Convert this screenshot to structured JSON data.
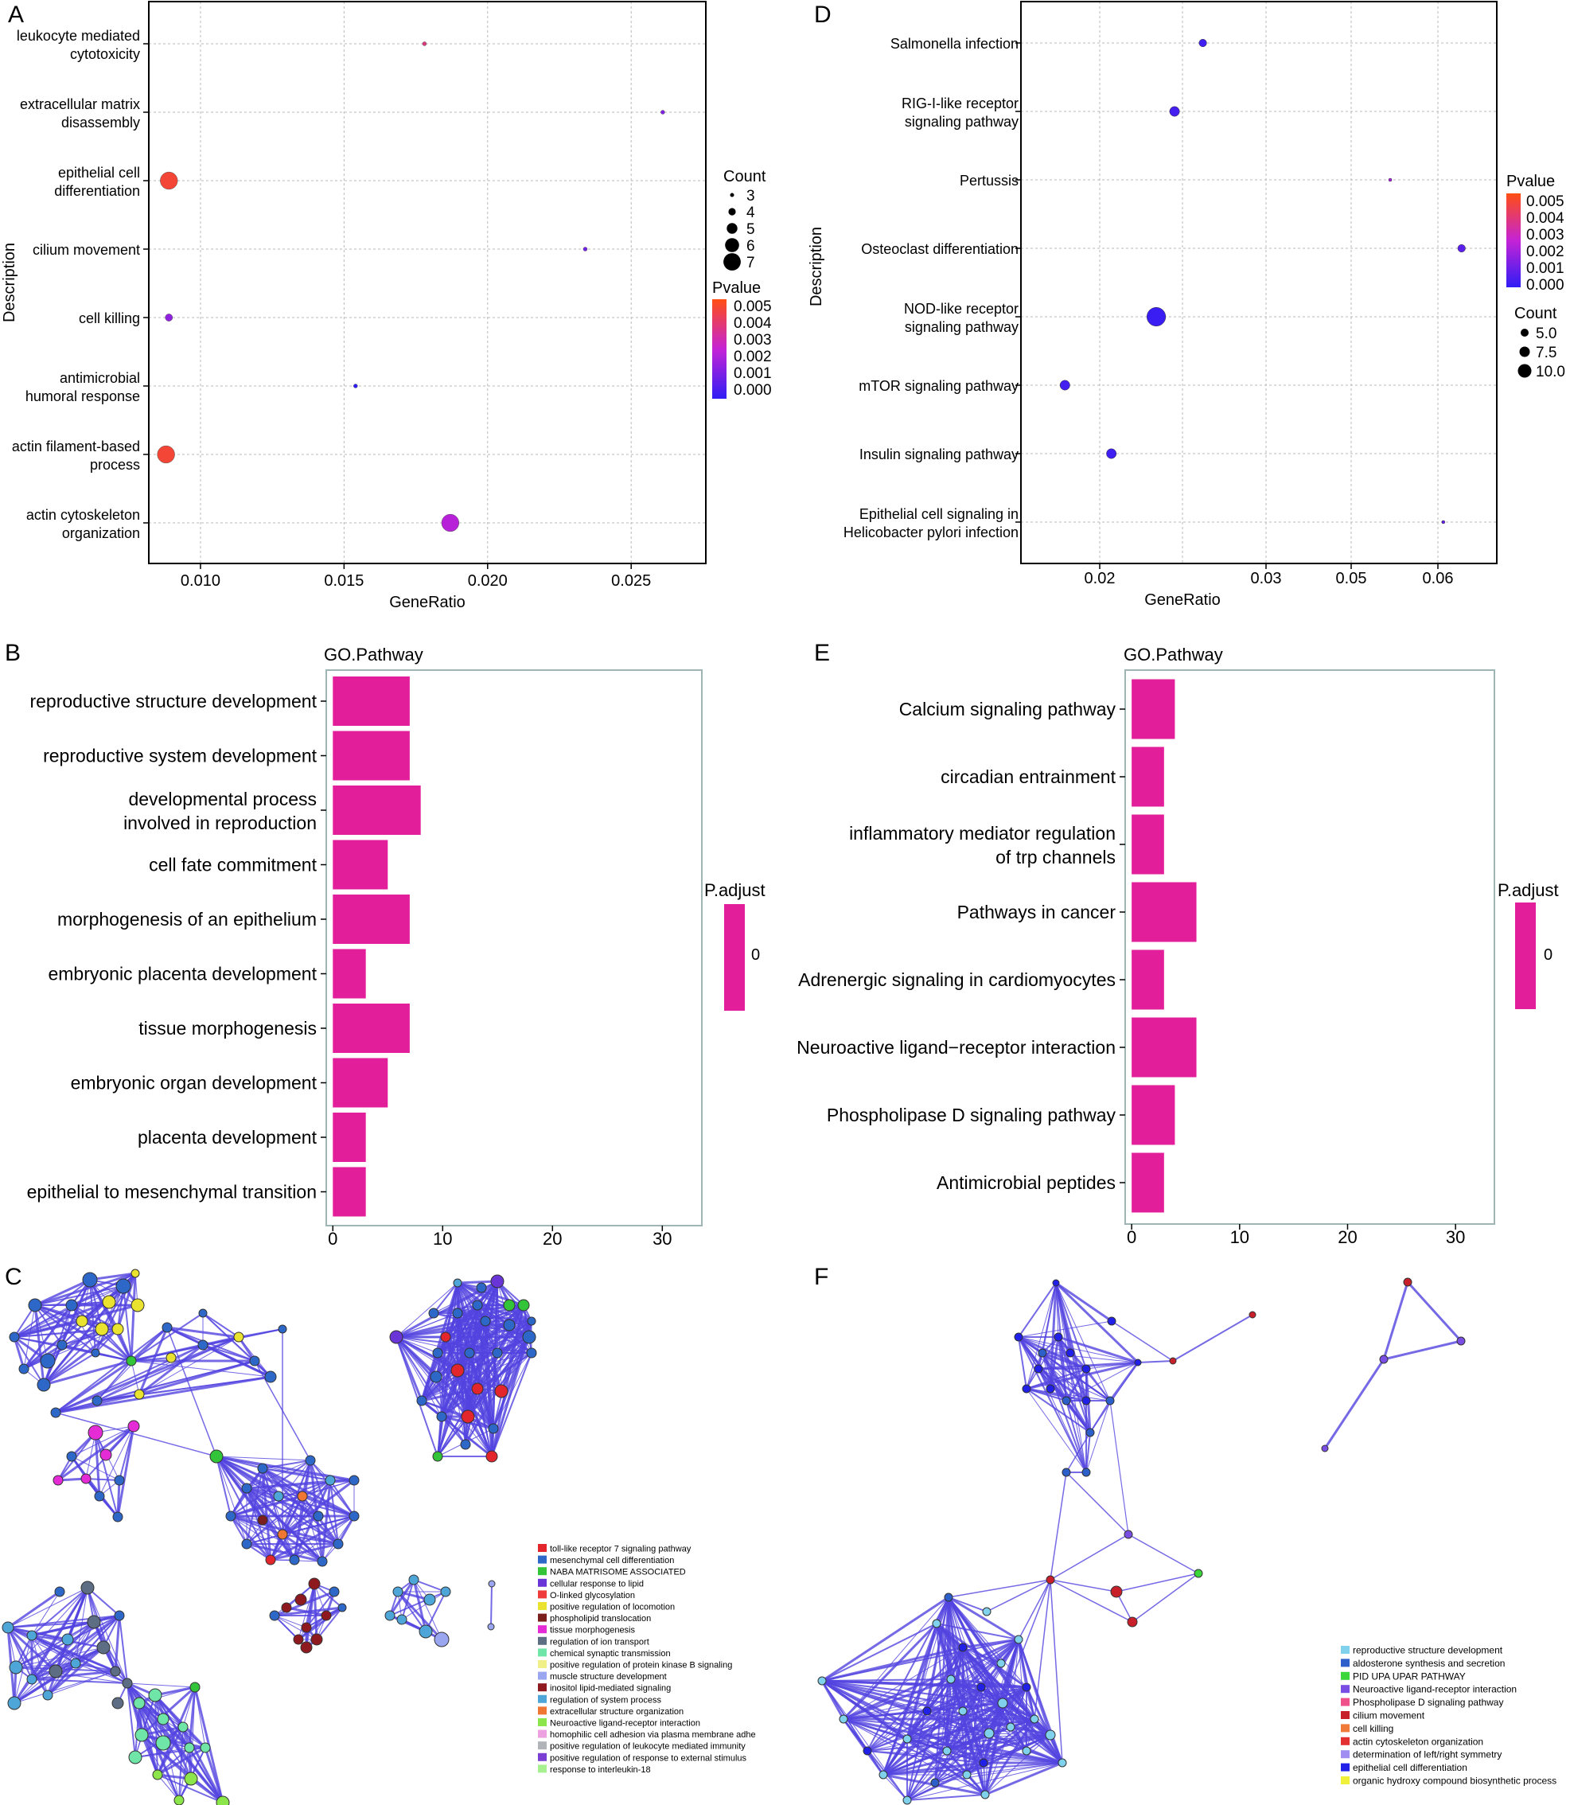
{
  "colors": {
    "frame": "#000000",
    "grid": "#b9b9b9",
    "bar": "#e31e9a",
    "go_frame": "#9fb4b4",
    "p_low": "#2f1df5",
    "p_mid": "#c523d6",
    "p_high": "#ff4e12",
    "edge": "#5344e0"
  },
  "panels": {
    "A": {
      "letter": "A",
      "title": "",
      "xlabel": "GeneRatio",
      "ylabel": "Description",
      "x_ticks": [
        "0.010",
        "0.015",
        "0.020",
        "0.025"
      ],
      "categories": [
        "leukocyte mediated cytotoxicity",
        "extracellular matrix disassembly",
        "epithelial cell differentiation",
        "cilium movement",
        "cell killing",
        "antimicrobial humoral response",
        "actin filament-based process",
        "actin cytoskeleton organization"
      ],
      "category_lines": [
        [
          "leukocyte mediated",
          "cytotoxicity"
        ],
        [
          "extracellular matrix",
          "disassembly"
        ],
        [
          "epithelial cell",
          "differentiation"
        ],
        [
          "cilium movement"
        ],
        [
          "cell killing"
        ],
        [
          "antimicrobial",
          "humoral response"
        ],
        [
          "actin filament-based",
          "process"
        ],
        [
          "actin cytoskeleton",
          "organization"
        ]
      ],
      "legend_count_title": "Count",
      "legend_count_labels": [
        "3",
        "4",
        "5",
        "6",
        "7"
      ],
      "legend_p_title": "Pvalue",
      "legend_p_labels": [
        "0.005",
        "0.004",
        "0.003",
        "0.002",
        "0.001",
        "0.000"
      ]
    },
    "B": {
      "letter": "B",
      "title": "GO.Pathway",
      "x_ticks": [
        "0",
        "10",
        "20",
        "30"
      ],
      "legend_title": "P.adjust",
      "legend_label": "0",
      "category_lines": [
        [
          "reproductive structure development"
        ],
        [
          "reproductive system development"
        ],
        [
          "developmental process",
          "involved in reproduction"
        ],
        [
          "cell fate commitment"
        ],
        [
          "morphogenesis of an epithelium"
        ],
        [
          "embryonic placenta development"
        ],
        [
          "tissue morphogenesis"
        ],
        [
          "embryonic organ development"
        ],
        [
          "placenta development"
        ],
        [
          "epithelial to mesenchymal transition"
        ]
      ]
    },
    "C": {
      "letter": "C",
      "legend": [
        "toll-like receptor 7 signaling pathway",
        "mesenchymal cell differentiation",
        "NABA MATRISOME ASSOCIATED",
        "cellular response to lipid",
        "O-linked glycosylation",
        "positive regulation of locomotion",
        "phospholipid translocation",
        "tissue morphogenesis",
        "regulation of ion transport",
        "chemical synaptic transmission",
        "positive regulation of protein kinase B signaling",
        "muscle structure development",
        "inositol lipid-mediated signaling",
        "regulation of system process",
        "extracellular structure organization",
        "Neuroactive ligand-receptor interaction",
        "homophilic cell adhesion via plasma membrane adhe",
        "positive regulation of leukocyte mediated immunity",
        "positive regulation of response to external stimulus",
        "response to interleukin-18"
      ],
      "legend_colors": [
        "#e3262b",
        "#2d67c8",
        "#33c43a",
        "#6a35d6",
        "#ef3b3b",
        "#e9e22f",
        "#7a1f1c",
        "#e52bd6",
        "#5d6e84",
        "#6fe6a8",
        "#f0ef88",
        "#9aa6f0",
        "#8e1a20",
        "#4ea6d8",
        "#ef7733",
        "#8ce54a",
        "#eda1e0",
        "#b0b4b8",
        "#7b3fd4",
        "#a6f08f"
      ]
    },
    "D": {
      "letter": "D",
      "xlabel": "GeneRatio",
      "ylabel": "Description",
      "x_ticks": [
        "0.02",
        "0.03",
        "0.05",
        "0.06"
      ],
      "categories": [
        "Salmonella infection",
        "RIG-I-like receptor signaling pathway",
        "Pertussis",
        "Osteoclast differentiation",
        "NOD-like receptor signaling pathway",
        "mTOR signaling pathway",
        "Insulin signaling pathway",
        "Epithelial cell signaling in Helicobacter pylori infection"
      ],
      "category_lines": [
        [
          "Salmonella infection"
        ],
        [
          "RIG-I-like receptor",
          "signaling pathway"
        ],
        [
          "Pertussis"
        ],
        [
          "Osteoclast differentiation"
        ],
        [
          "NOD-like receptor",
          "signaling pathway"
        ],
        [
          "mTOR signaling pathway"
        ],
        [
          "Insulin signaling pathway"
        ],
        [
          "Epithelial cell signaling in",
          "Helicobacter pylori infection"
        ]
      ],
      "legend_p_title": "Pvalue",
      "legend_p_labels": [
        "0.005",
        "0.004",
        "0.003",
        "0.002",
        "0.001",
        "0.000"
      ],
      "legend_count_title": "Count",
      "legend_count_labels": [
        "5.0",
        "7.5",
        "10.0"
      ]
    },
    "E": {
      "letter": "E",
      "title": "GO.Pathway",
      "x_ticks": [
        "0",
        "10",
        "20",
        "30"
      ],
      "legend_title": "P.adjust",
      "legend_label": "0",
      "category_lines": [
        [
          "Calcium signaling pathway"
        ],
        [
          "circadian entrainment"
        ],
        [
          "inflammatory mediator regulation",
          "of trp channels"
        ],
        [
          "Pathways in cancer"
        ],
        [
          "Adrenergic signaling in cardiomyocytes"
        ],
        [
          "Neuroactive ligand−receptor interaction"
        ],
        [
          "Phospholipase D signaling pathway"
        ],
        [
          "Antimicrobial peptides"
        ]
      ]
    },
    "F": {
      "letter": "F",
      "legend": [
        "reproductive structure development",
        "aldosterone synthesis and secretion",
        "PID UPA UPAR PATHWAY",
        "Neuroactive ligand-receptor interaction",
        "Phospholipase D signaling pathway",
        "cilium movement",
        "cell killing",
        "actin cytoskeleton organization",
        "determination of left/right symmetry",
        "epithelial cell differentiation",
        "organic hydroxy compound biosynthetic process"
      ],
      "legend_colors": [
        "#7fd1ec",
        "#2c5fc9",
        "#3ad63a",
        "#7b4ee3",
        "#f0508a",
        "#c8202a",
        "#f07a3a",
        "#e33030",
        "#a08ff0",
        "#2020e8",
        "#f0f03a"
      ]
    }
  },
  "chart_data": [
    {
      "panel": "A",
      "type": "scatter",
      "title": "",
      "xlabel": "GeneRatio",
      "ylabel": "Description",
      "xlim": [
        0.0082,
        0.0276
      ],
      "categories": [
        "leukocyte mediated cytotoxicity",
        "extracellular matrix disassembly",
        "epithelial cell differentiation",
        "cilium movement",
        "cell killing",
        "antimicrobial humoral response",
        "actin filament-based process",
        "actin cytoskeleton organization"
      ],
      "x": [
        0.0178,
        0.0261,
        0.0089,
        0.0234,
        0.0089,
        0.0154,
        0.0088,
        0.0187
      ],
      "count": [
        3,
        3,
        7,
        3,
        4,
        3,
        7,
        7
      ],
      "pvalue": [
        0.004,
        0.0015,
        0.005,
        0.0012,
        0.0018,
        0.0,
        0.005,
        0.0025
      ],
      "plim": [
        0,
        0.0055
      ]
    },
    {
      "panel": "B",
      "type": "bar",
      "title": "GO.Pathway",
      "categories": [
        "reproductive structure development",
        "reproductive system development",
        "developmental process involved in reproduction",
        "cell fate commitment",
        "morphogenesis of an epithelium",
        "embryonic placenta development",
        "tissue morphogenesis",
        "embryonic organ development",
        "placenta development",
        "epithelial to mesenchymal transition"
      ],
      "values": [
        7,
        7,
        8,
        5,
        7,
        3,
        7,
        5,
        3,
        3
      ],
      "xlim": [
        -0.6,
        33.6
      ]
    },
    {
      "panel": "D",
      "type": "scatter",
      "xlabel": "GeneRatio",
      "ylabel": "Description",
      "x_scale": "discrete ticks at 0.02, 0.03, 0.05, 0.06",
      "categories": [
        "Salmonella infection",
        "RIG-I-like receptor signaling pathway",
        "Pertussis",
        "Osteoclast differentiation",
        "NOD-like receptor signaling pathway",
        "mTOR signaling pathway",
        "Insulin signaling pathway",
        "Epithelial cell signaling in Helicobacter pylori infection"
      ],
      "x": [
        0.0262,
        0.0245,
        0.0545,
        0.0635,
        0.0234,
        0.0162,
        0.0207,
        0.0608
      ],
      "count": [
        6,
        7,
        4,
        6,
        11,
        7,
        7,
        4
      ],
      "pvalue": [
        0.0003,
        0.0004,
        0.0022,
        0.0008,
        0.0002,
        0.0004,
        0.0003,
        0.001
      ],
      "plim": [
        0,
        0.0055
      ]
    },
    {
      "panel": "E",
      "type": "bar",
      "title": "GO.Pathway",
      "categories": [
        "Calcium signaling pathway",
        "circadian entrainment",
        "inflammatory mediator regulation of trp channels",
        "Pathways in cancer",
        "Adrenergic signaling in cardiomyocytes",
        "Neuroactive ligand−receptor interaction",
        "Phospholipase D signaling pathway",
        "Antimicrobial peptides"
      ],
      "values": [
        4,
        3,
        3,
        6,
        3,
        6,
        4,
        3
      ],
      "xlim": [
        -0.6,
        33.6
      ]
    }
  ]
}
